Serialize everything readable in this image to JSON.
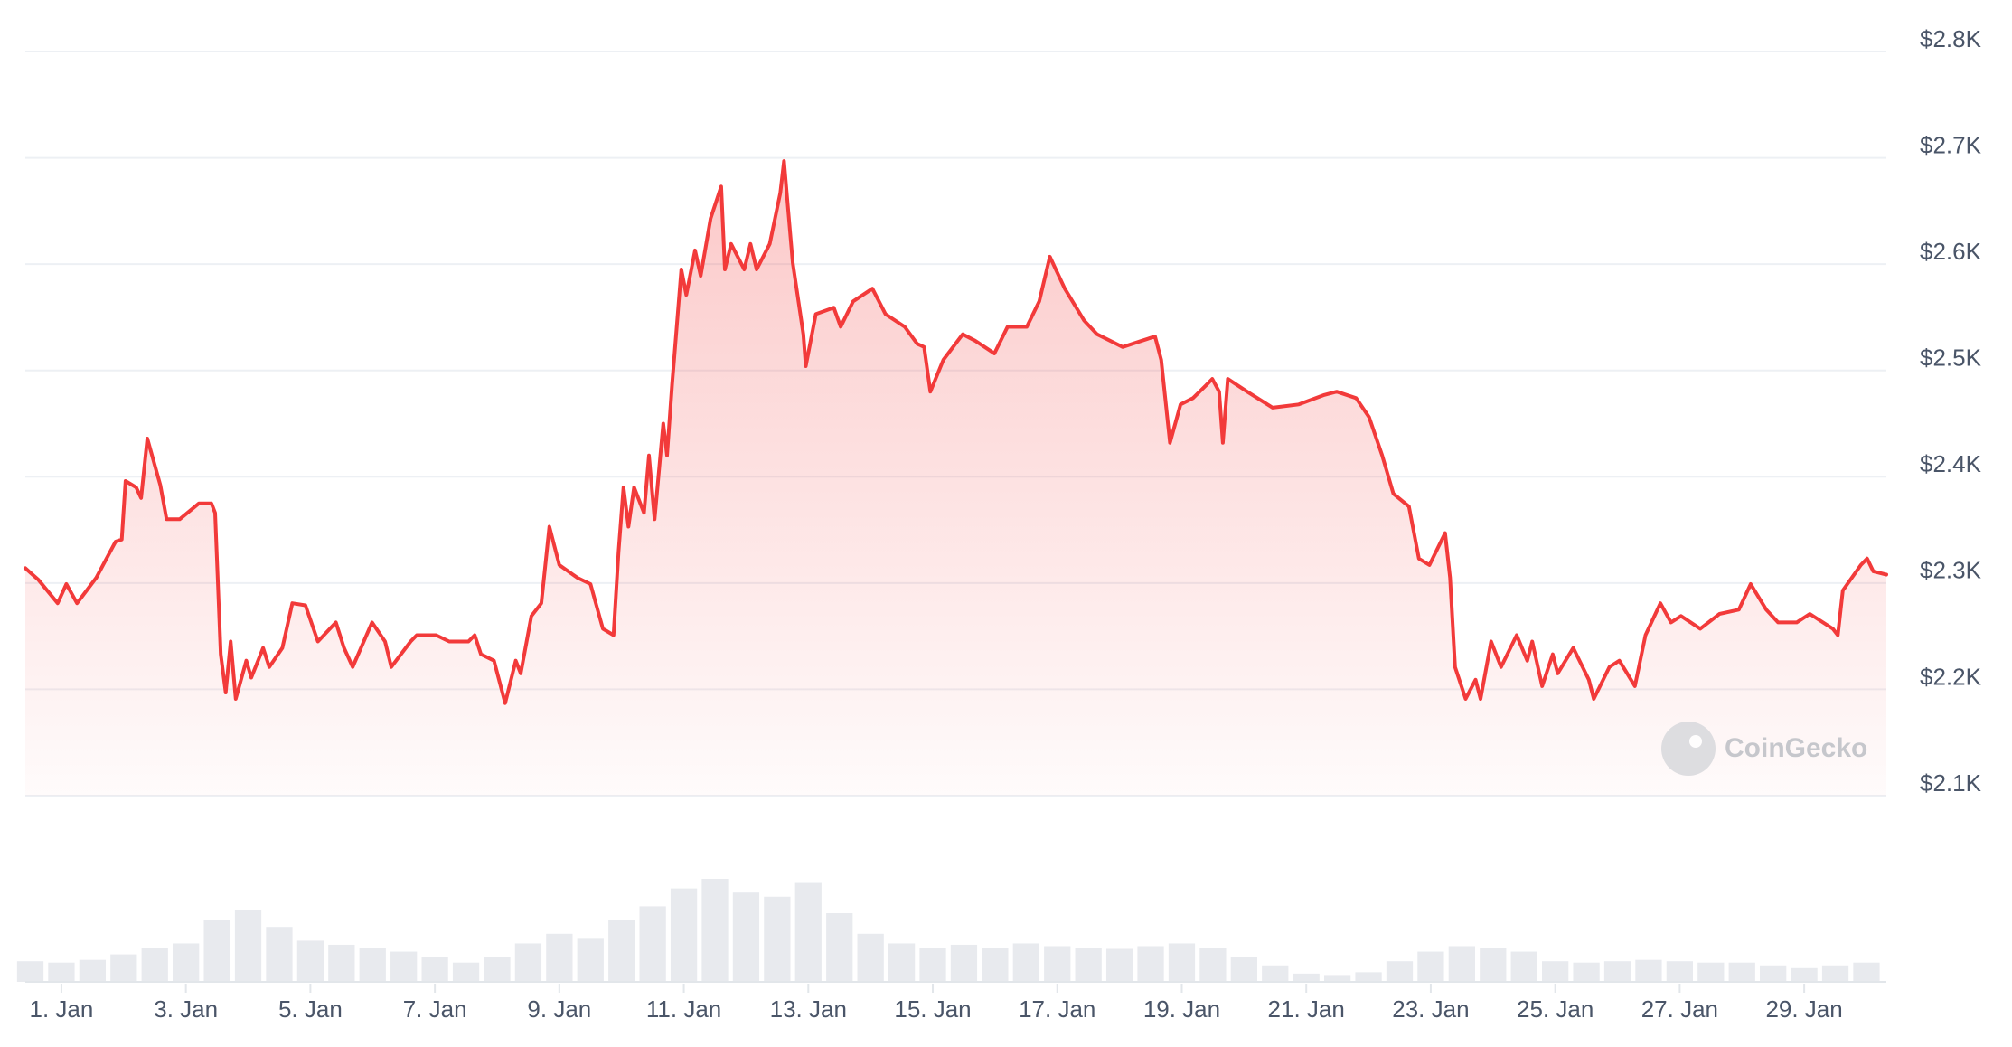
{
  "chart_data": {
    "type": "area",
    "color": "#f23a3a",
    "grid": true,
    "watermark": "CoinGecko",
    "xlim": [
      0.42,
      30.32
    ],
    "ylim": [
      2100,
      2800
    ],
    "yticks": [
      {
        "value": 2100,
        "label": "$2.1K"
      },
      {
        "value": 2200,
        "label": "$2.2K"
      },
      {
        "value": 2300,
        "label": "$2.3K"
      },
      {
        "value": 2400,
        "label": "$2.4K"
      },
      {
        "value": 2500,
        "label": "$2.5K"
      },
      {
        "value": 2600,
        "label": "$2.6K"
      },
      {
        "value": 2700,
        "label": "$2.7K"
      },
      {
        "value": 2800,
        "label": "$2.8K"
      }
    ],
    "xticks": [
      {
        "value": 1,
        "label": "1. Jan"
      },
      {
        "value": 3,
        "label": "3. Jan"
      },
      {
        "value": 5,
        "label": "5. Jan"
      },
      {
        "value": 7,
        "label": "7. Jan"
      },
      {
        "value": 9,
        "label": "9. Jan"
      },
      {
        "value": 11,
        "label": "11. Jan"
      },
      {
        "value": 13,
        "label": "13. Jan"
      },
      {
        "value": 15,
        "label": "15. Jan"
      },
      {
        "value": 17,
        "label": "17. Jan"
      },
      {
        "value": 19,
        "label": "19. Jan"
      },
      {
        "value": 21,
        "label": "21. Jan"
      },
      {
        "value": 23,
        "label": "23. Jan"
      },
      {
        "value": 25,
        "label": "25. Jan"
      },
      {
        "value": 27,
        "label": "27. Jan"
      },
      {
        "value": 29,
        "label": "29. Jan"
      }
    ],
    "x": [
      0.42,
      0.63,
      0.94,
      1.08,
      1.25,
      1.56,
      1.87,
      1.97,
      2.03,
      2.2,
      2.28,
      2.38,
      2.59,
      2.69,
      2.9,
      3.21,
      3.41,
      3.47,
      3.56,
      3.64,
      3.72,
      3.8,
      3.97,
      4.05,
      4.24,
      4.34,
      4.55,
      4.71,
      4.92,
      5.12,
      5.41,
      5.54,
      5.68,
      5.99,
      6.2,
      6.3,
      6.61,
      6.71,
      7.02,
      7.23,
      7.54,
      7.64,
      7.74,
      7.95,
      8.13,
      8.3,
      8.38,
      8.55,
      8.71,
      8.84,
      9.0,
      9.29,
      9.5,
      9.7,
      9.87,
      9.95,
      10.03,
      10.11,
      10.2,
      10.36,
      10.44,
      10.53,
      10.67,
      10.73,
      10.81,
      10.96,
      11.04,
      11.18,
      11.27,
      11.43,
      11.6,
      11.66,
      11.76,
      11.97,
      12.07,
      12.17,
      12.38,
      12.55,
      12.61,
      12.67,
      12.75,
      12.92,
      12.96,
      13.12,
      13.41,
      13.52,
      13.72,
      14.03,
      14.24,
      14.55,
      14.75,
      14.86,
      14.96,
      15.17,
      15.48,
      15.68,
      15.99,
      16.2,
      16.51,
      16.71,
      16.88,
      17.12,
      17.43,
      17.64,
      18.05,
      18.36,
      18.57,
      18.67,
      18.81,
      18.98,
      19.18,
      19.39,
      19.49,
      19.6,
      19.66,
      19.74,
      20.05,
      20.46,
      20.88,
      21.29,
      21.49,
      21.8,
      22.01,
      22.22,
      22.4,
      22.65,
      22.81,
      22.98,
      23.23,
      23.31,
      23.39,
      23.56,
      23.72,
      23.8,
      23.97,
      24.13,
      24.38,
      24.55,
      24.63,
      24.79,
      24.96,
      25.04,
      25.29,
      25.54,
      25.62,
      25.87,
      26.03,
      26.28,
      26.45,
      26.69,
      26.86,
      27.02,
      27.33,
      27.64,
      27.95,
      28.14,
      28.39,
      28.58,
      28.88,
      29.09,
      29.46,
      29.54,
      29.62,
      29.91,
      30.01,
      30.11,
      30.32
    ],
    "values": [
      2314,
      2303,
      2281,
      2299,
      2281,
      2305,
      2339,
      2341,
      2396,
      2390,
      2380,
      2436,
      2392,
      2360,
      2360,
      2375,
      2375,
      2366,
      2233,
      2197,
      2245,
      2191,
      2227,
      2211,
      2239,
      2221,
      2239,
      2281,
      2279,
      2245,
      2263,
      2239,
      2221,
      2263,
      2245,
      2221,
      2245,
      2251,
      2251,
      2245,
      2245,
      2251,
      2233,
      2227,
      2187,
      2227,
      2215,
      2269,
      2281,
      2353,
      2317,
      2305,
      2299,
      2257,
      2251,
      2329,
      2390,
      2353,
      2390,
      2366,
      2420,
      2360,
      2450,
      2420,
      2486,
      2595,
      2571,
      2613,
      2589,
      2643,
      2673,
      2595,
      2619,
      2595,
      2619,
      2595,
      2619,
      2667,
      2697,
      2655,
      2601,
      2534,
      2504,
      2553,
      2559,
      2541,
      2565,
      2577,
      2553,
      2541,
      2525,
      2522,
      2480,
      2510,
      2534,
      2528,
      2516,
      2541,
      2541,
      2565,
      2607,
      2577,
      2547,
      2534,
      2522,
      2528,
      2532,
      2510,
      2432,
      2468,
      2474,
      2486,
      2492,
      2480,
      2432,
      2492,
      2480,
      2465,
      2468,
      2477,
      2480,
      2474,
      2456,
      2420,
      2384,
      2372,
      2323,
      2317,
      2347,
      2305,
      2221,
      2191,
      2209,
      2191,
      2245,
      2221,
      2251,
      2227,
      2245,
      2203,
      2233,
      2215,
      2239,
      2209,
      2191,
      2221,
      2227,
      2203,
      2251,
      2281,
      2263,
      2269,
      2257,
      2271,
      2275,
      2299,
      2275,
      2263,
      2263,
      2271,
      2257,
      2251,
      2293,
      2317,
      2323,
      2311,
      2308
    ],
    "volume": {
      "color": "#e8eaee",
      "ylim": [
        0,
        100
      ],
      "x": [
        0.5,
        1,
        1.5,
        2,
        2.5,
        3,
        3.5,
        4,
        4.5,
        5,
        5.5,
        6,
        6.5,
        7,
        7.5,
        8,
        8.5,
        9,
        9.5,
        10,
        10.5,
        11,
        11.5,
        12,
        12.5,
        13,
        13.5,
        14,
        14.5,
        15,
        15.5,
        16,
        16.5,
        17,
        17.5,
        18,
        18.5,
        19,
        19.5,
        20,
        20.5,
        21,
        21.5,
        22,
        22.5,
        23,
        23.5,
        24,
        24.5,
        25,
        25.5,
        26,
        26.5,
        27,
        27.5,
        28,
        28.5,
        29,
        29.5,
        30
      ],
      "values": [
        15,
        14,
        16,
        20,
        25,
        28,
        45,
        52,
        40,
        30,
        27,
        25,
        22,
        18,
        14,
        18,
        28,
        35,
        32,
        45,
        55,
        68,
        75,
        65,
        62,
        72,
        50,
        35,
        28,
        25,
        27,
        25,
        28,
        26,
        25,
        24,
        26,
        28,
        25,
        18,
        12,
        6,
        5,
        7,
        15,
        22,
        26,
        25,
        22,
        15,
        14,
        15,
        16,
        15,
        14,
        14,
        12,
        10,
        12,
        14
      ]
    }
  }
}
